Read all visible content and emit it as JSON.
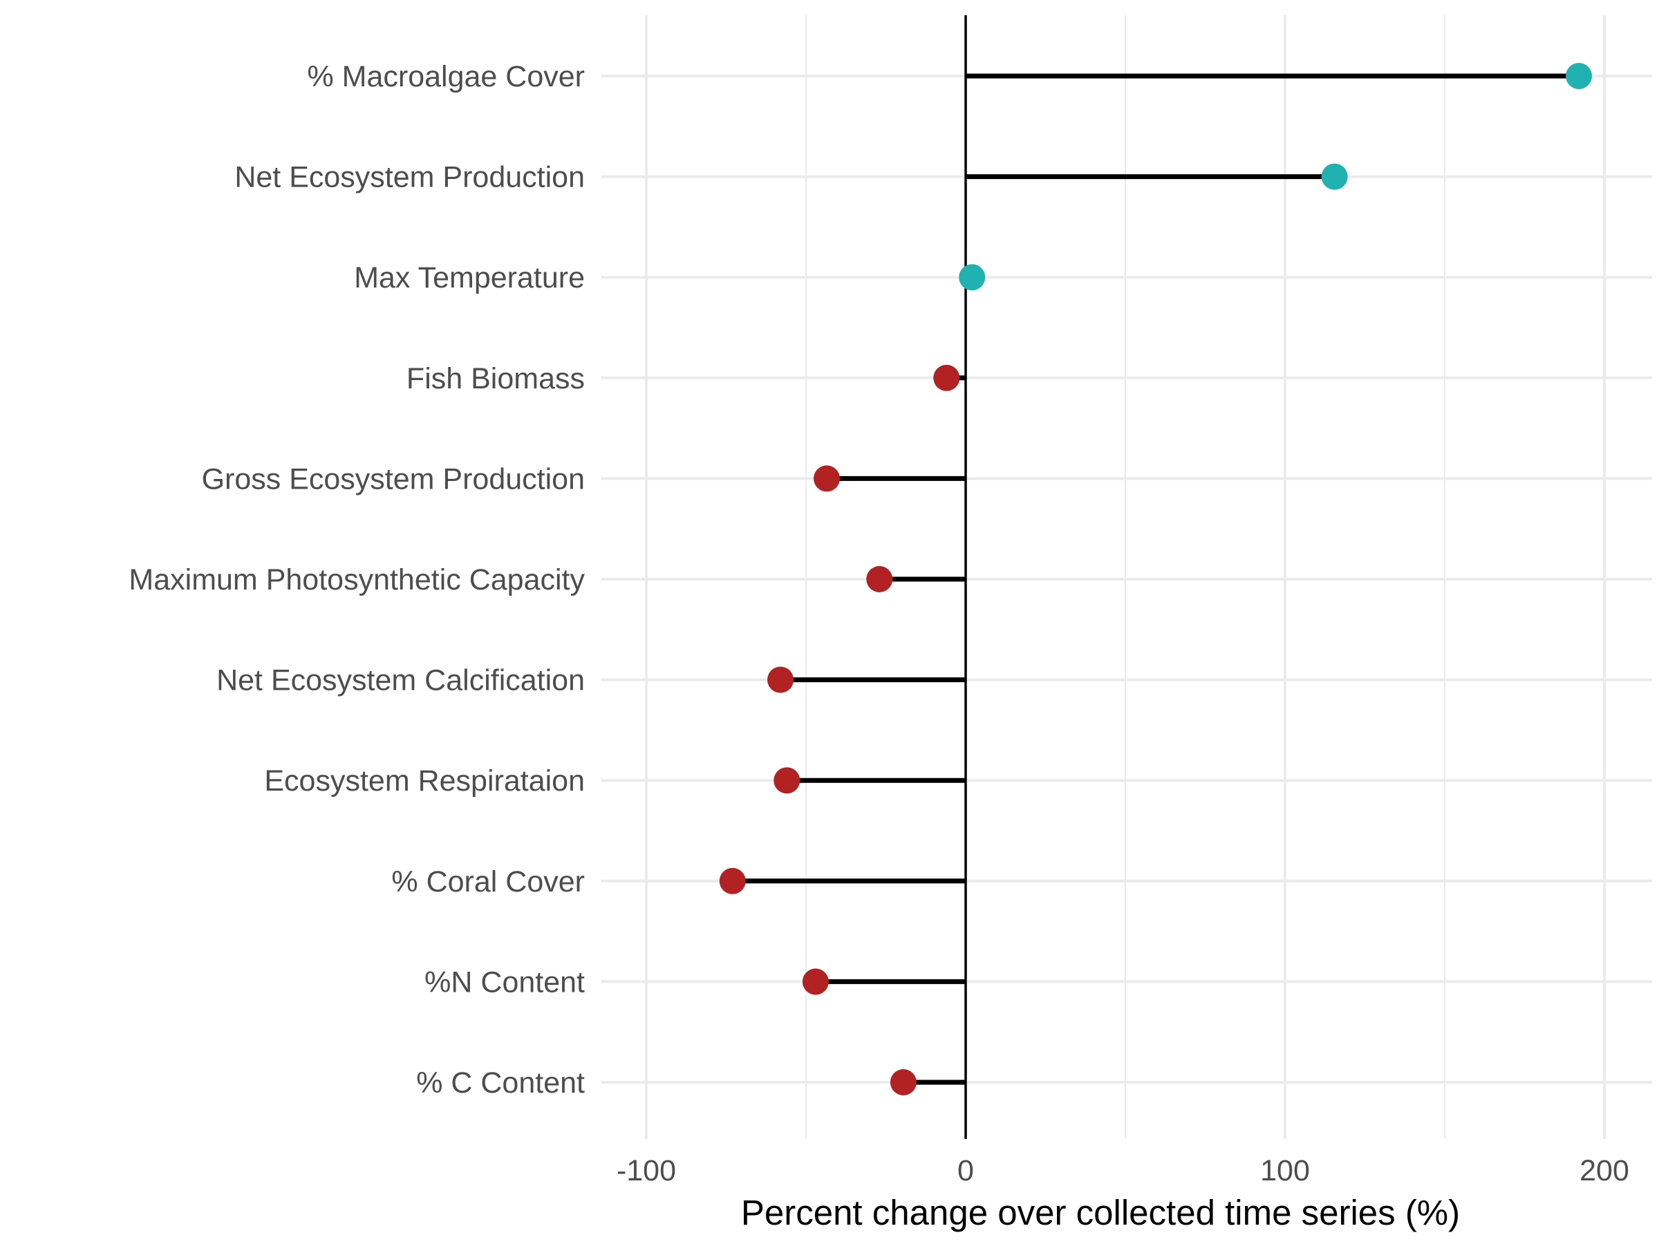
{
  "chart_data": {
    "type": "lollipop",
    "orientation": "horizontal",
    "xlabel": "Percent change over collected time series (%)",
    "ylabel": "",
    "xlim": [
      -113,
      215
    ],
    "xticks": [
      -100,
      0,
      100,
      200
    ],
    "xtick_labels": [
      "-100",
      "0",
      "100",
      "200"
    ],
    "minor_gridlines": [
      -50,
      50,
      150
    ],
    "grid": true,
    "baseline": 0,
    "categories": [
      "% Macroalgae Cover",
      "Net Ecosystem Production",
      "Max Temperature",
      "Fish Biomass",
      "Gross Ecosystem Production",
      "Maximum Photosynthetic Capacity",
      "Net Ecosystem Calcification",
      "Ecosystem Respirataion",
      "% Coral Cover",
      "%N Content",
      "% C Content"
    ],
    "values": [
      192,
      115.5,
      2,
      -6,
      -43.5,
      -27,
      -58,
      -56,
      -73,
      -47,
      -19.5
    ],
    "colors": {
      "positive": "#20b2b0",
      "negative": "#b22222",
      "stem": "#000000",
      "grid": "#ebebeb",
      "zero_line": "#000000"
    }
  }
}
